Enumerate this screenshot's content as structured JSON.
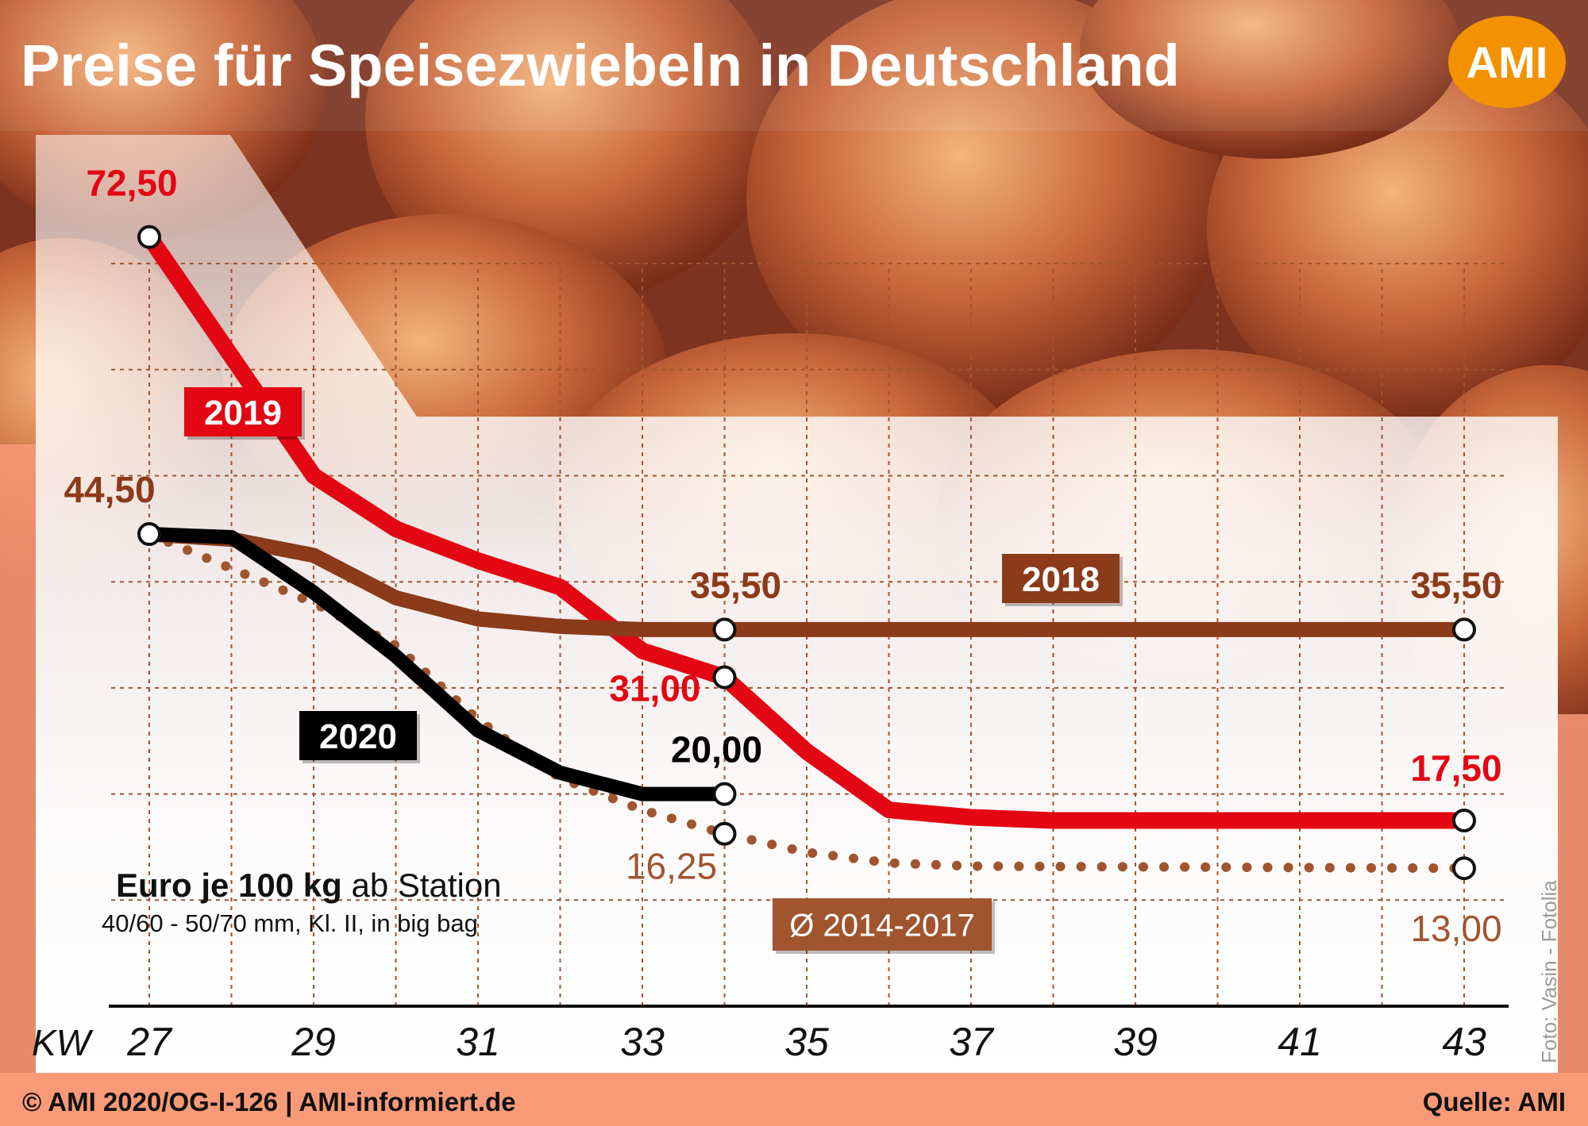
{
  "header": {
    "title": "Preise für Speisezwiebeln in Deutschland",
    "logo_text": "AMI"
  },
  "footer": {
    "copyright": "© AMI 2020/OG-I-126 | AMI-informiert.de",
    "source": "Quelle: AMI"
  },
  "photo_credit": "Foto: Vasin - Fotolia",
  "colors": {
    "accent": "#f89a78",
    "logo": "#f39200",
    "series_2019": "#e30613",
    "series_2018": "#8b3a1a",
    "series_2020": "#000000",
    "series_avg": "#a0552f"
  },
  "chart_data": {
    "type": "line",
    "xlabel": "KW",
    "ylabel": "Euro je 100 kg ab Station",
    "unit_line1_bold": "Euro je 100 kg",
    "unit_line1_rest": " ab Station",
    "unit_line2": "40/60 - 50/70 mm, Kl. II, in big bag",
    "x_ticks": [
      "27",
      "29",
      "31",
      "33",
      "35",
      "37",
      "39",
      "41",
      "43"
    ],
    "xlim": [
      27,
      43
    ],
    "ylim": [
      0,
      80
    ],
    "grid": true,
    "series": [
      {
        "name": "2019",
        "x": [
          27,
          29,
          30,
          31,
          32,
          33,
          34,
          35,
          36,
          37,
          38,
          43
        ],
        "y": [
          72.5,
          50,
          45,
          42,
          39.5,
          33.5,
          31,
          24,
          18.5,
          17.8,
          17.5,
          17.5
        ]
      },
      {
        "name": "2018",
        "x": [
          27,
          28,
          29,
          30,
          31,
          32,
          33,
          34,
          43
        ],
        "y": [
          44.5,
          44,
          42.5,
          38.5,
          36.5,
          35.8,
          35.5,
          35.5,
          35.5
        ]
      },
      {
        "name": "2020",
        "x": [
          27,
          28,
          29,
          30,
          31,
          32,
          33,
          34
        ],
        "y": [
          44.5,
          44.2,
          39,
          33,
          26,
          22,
          20,
          20
        ]
      },
      {
        "name": "Ø 2014-2017",
        "x": [
          27,
          29,
          30,
          31,
          32,
          33,
          34,
          35,
          36,
          37,
          43
        ],
        "y": [
          44.5,
          38,
          34,
          27,
          21.5,
          18.5,
          16.25,
          14.5,
          13.5,
          13.2,
          13
        ]
      }
    ],
    "annotations": [
      {
        "series": "2019",
        "x": 27,
        "y": 72.5,
        "text": "72,50"
      },
      {
        "series": "2019",
        "x": 34,
        "y": 31,
        "text": "31,00"
      },
      {
        "series": "2019",
        "x": 43,
        "y": 17.5,
        "text": "17,50"
      },
      {
        "series": "2018",
        "x": 27,
        "y": 44.5,
        "text": "44,50"
      },
      {
        "series": "2018",
        "x": 34,
        "y": 35.5,
        "text": "35,50"
      },
      {
        "series": "2018",
        "x": 43,
        "y": 35.5,
        "text": "35,50"
      },
      {
        "series": "2020",
        "x": 34,
        "y": 20,
        "text": "20,00"
      },
      {
        "series": "Ø 2014-2017",
        "x": 34,
        "y": 16.25,
        "text": "16,25"
      },
      {
        "series": "Ø 2014-2017",
        "x": 43,
        "y": 13,
        "text": "13,00"
      }
    ]
  }
}
